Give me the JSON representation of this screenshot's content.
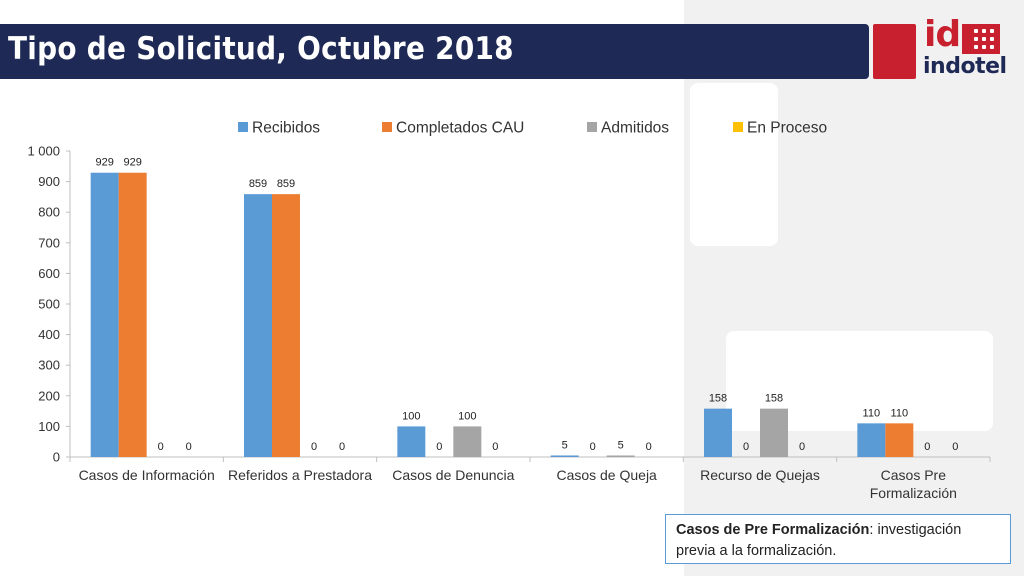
{
  "slide": {
    "title": "Tipo de Solicitud, Octubre 2018"
  },
  "logo": {
    "top_text": "id",
    "bottom_text": "indotel",
    "brand_red": "#c8202f",
    "brand_navy": "#1e2a55"
  },
  "note": {
    "term": "Casos de Pre Formalización",
    "separator": ":",
    "definition": " investigación previa a la formalización."
  },
  "chart_data": {
    "type": "bar",
    "title": "",
    "xlabel": "",
    "ylabel": "",
    "ylim": [
      0,
      1000
    ],
    "yticks": [
      "0",
      "100",
      "200",
      "300",
      "400",
      "500",
      "600",
      "700",
      "800",
      "900",
      "1 000"
    ],
    "legend_position": "top",
    "grid": false,
    "categories": [
      [
        "Casos de Información"
      ],
      [
        "Referidos a Prestadora"
      ],
      [
        "Casos de Denuncia"
      ],
      [
        "Casos de Queja"
      ],
      [
        "Recurso de Quejas"
      ],
      [
        "Casos Pre",
        "Formalización"
      ]
    ],
    "series": [
      {
        "name": "Recibidos",
        "color": "#5b9bd5",
        "values": [
          929,
          859,
          100,
          5,
          158,
          110
        ],
        "labels": [
          "929",
          "859",
          "100",
          "5",
          "158",
          "110"
        ]
      },
      {
        "name": "Completados CAU",
        "color": "#ed7d31",
        "values": [
          929,
          859,
          0,
          0,
          0,
          110
        ],
        "labels": [
          "929",
          "859",
          "0",
          "0",
          "0",
          "110"
        ]
      },
      {
        "name": "Admitidos",
        "color": "#a5a5a5",
        "values": [
          0,
          0,
          100,
          5,
          158,
          0
        ],
        "labels": [
          "0",
          "0",
          "100",
          "5",
          "158",
          "0"
        ]
      },
      {
        "name": "En Proceso",
        "color": "#ffc000",
        "values": [
          0,
          0,
          0,
          0,
          0,
          0
        ],
        "labels": [
          "0",
          "0",
          "0",
          "0",
          "0",
          "0"
        ]
      }
    ]
  }
}
